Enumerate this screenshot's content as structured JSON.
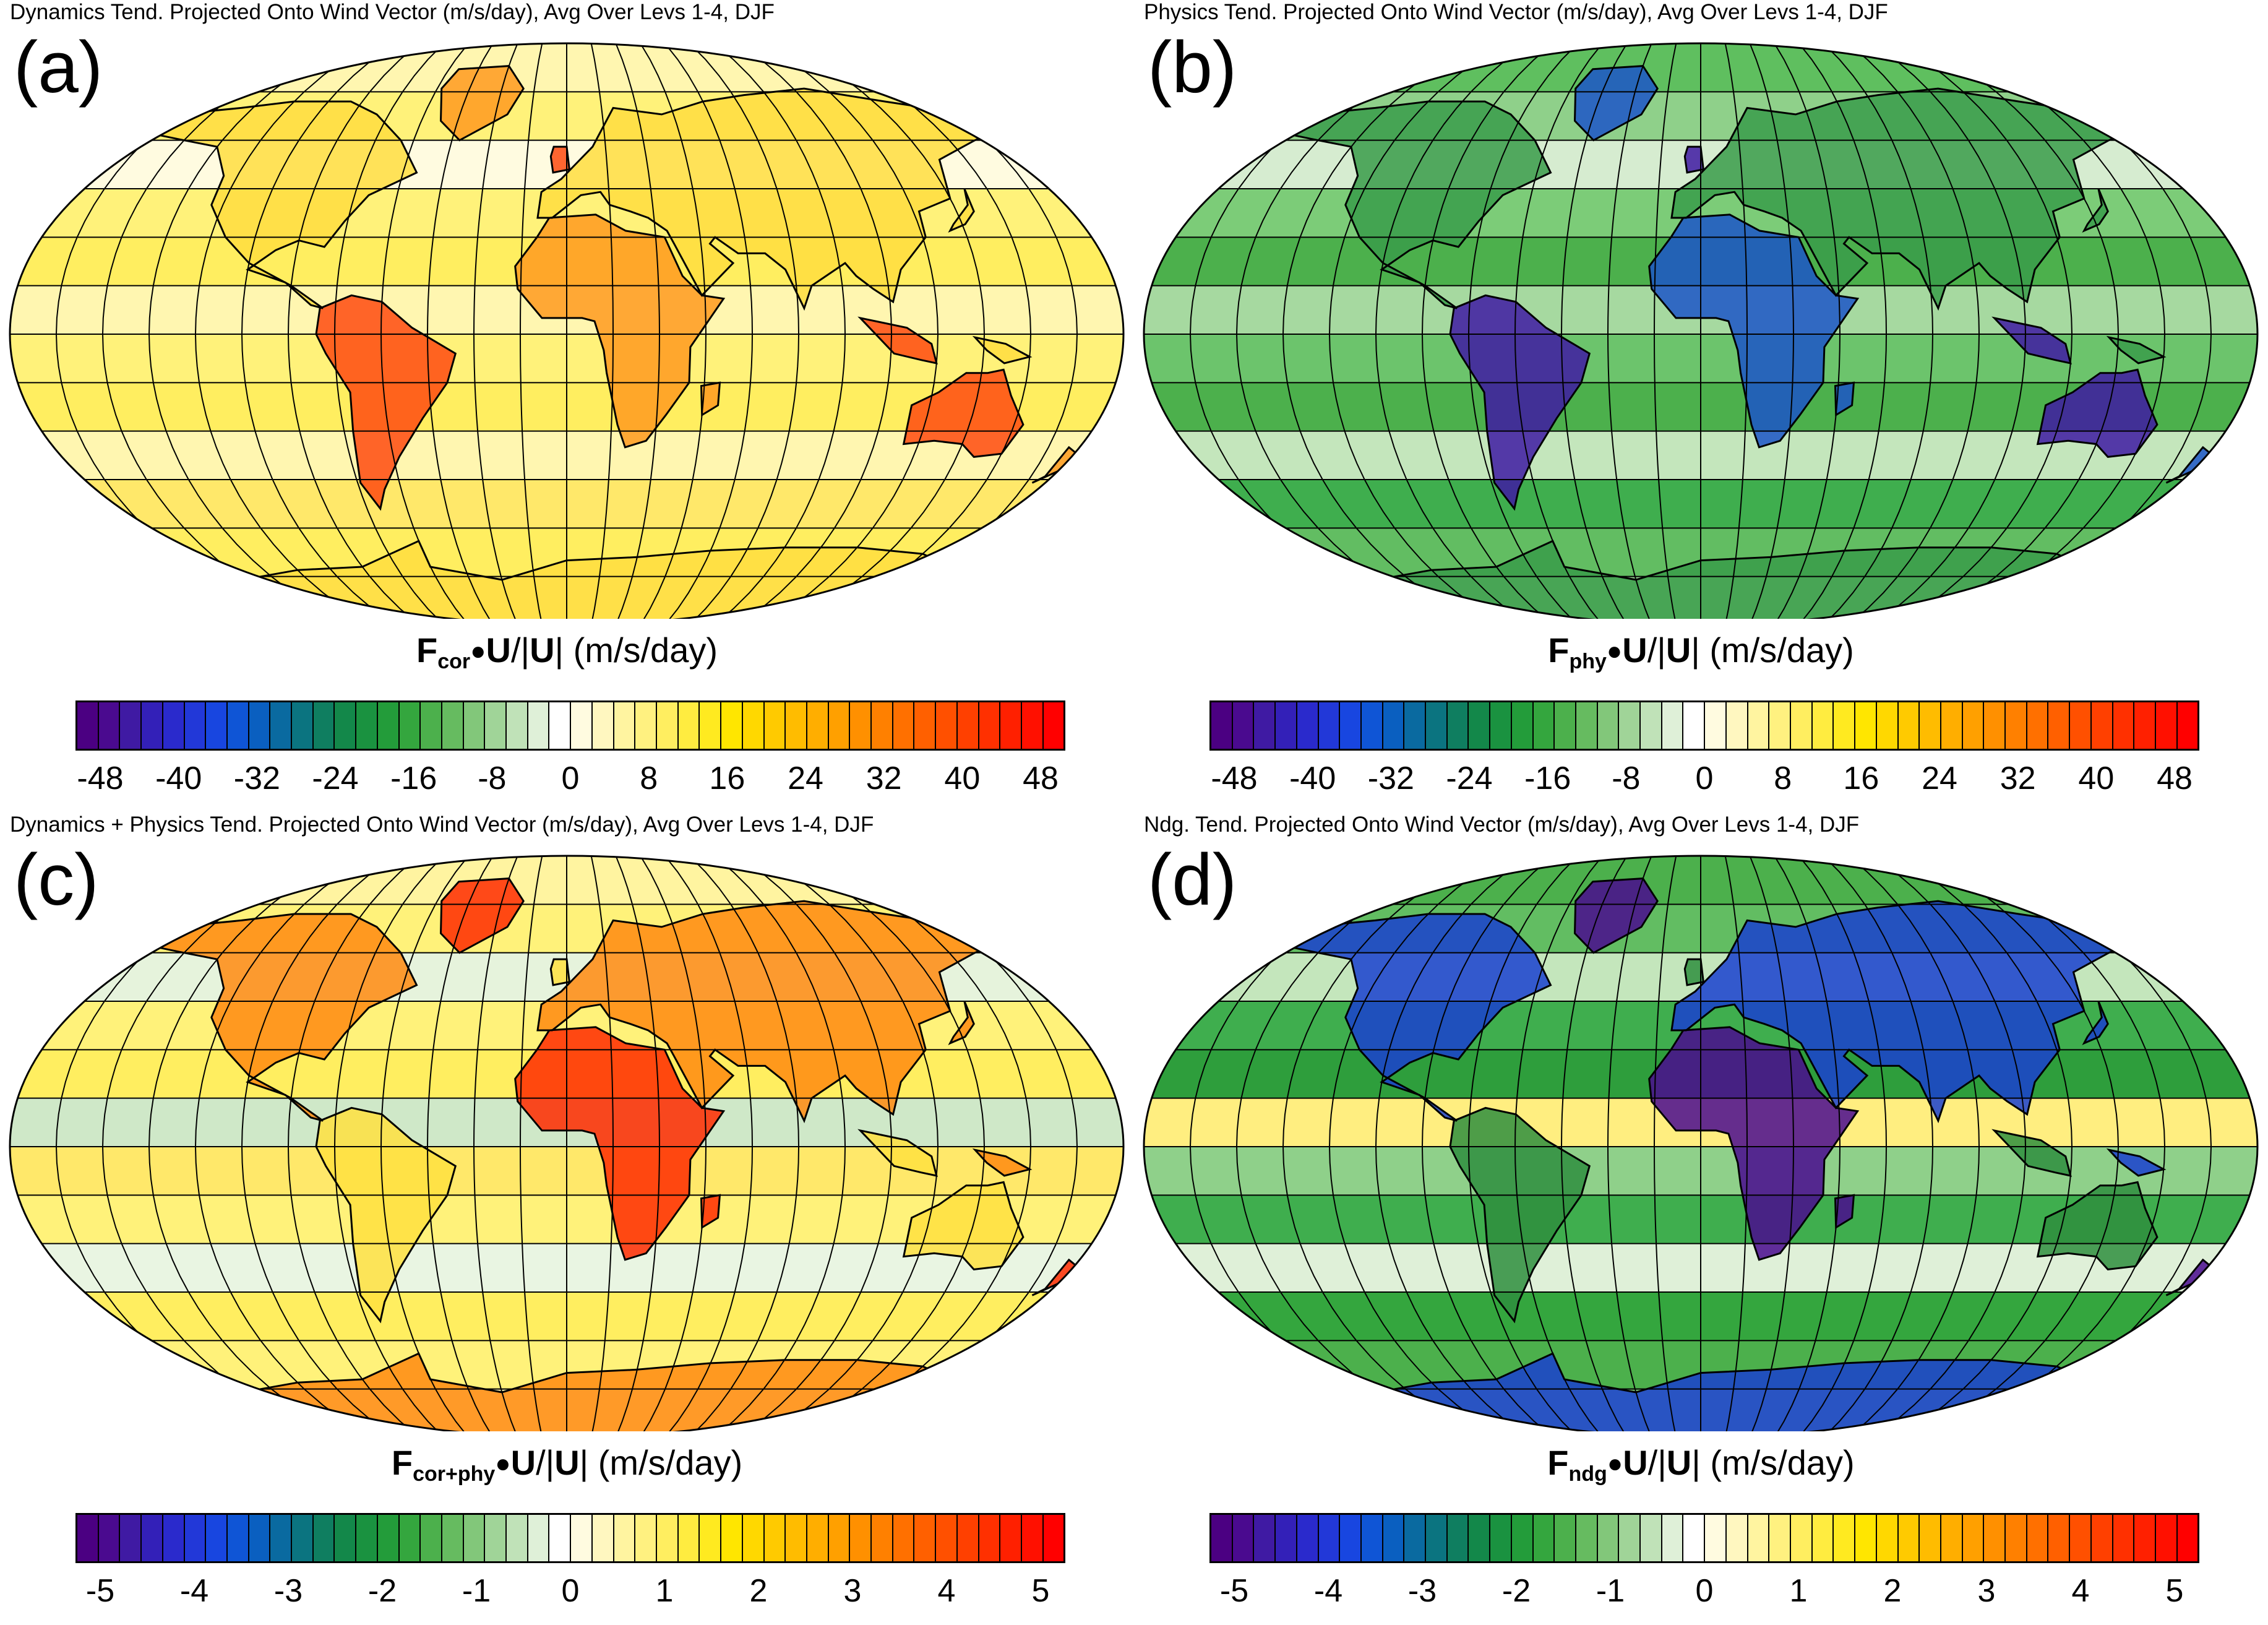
{
  "panels": [
    {
      "letter": "(a)",
      "title": "Dynamics Tend. Projected Onto Wind Vector (m/s/day), Avg Over Levs 1-4, DJF",
      "field": "dyn",
      "cbar": {
        "F": "F",
        "sub": "cor",
        "rest": "U",
        "slash": "/|",
        "rest2": "U",
        "end": "|",
        "units": "(m/s/day)"
      },
      "ticks": [
        "-48",
        "-40",
        "-32",
        "-24",
        "-16",
        "-8",
        "0",
        "8",
        "16",
        "24",
        "32",
        "40",
        "48"
      ]
    },
    {
      "letter": "(b)",
      "title": "Physics Tend. Projected Onto Wind Vector (m/s/day), Avg Over Levs 1-4, DJF",
      "field": "phy",
      "cbar": {
        "F": "F",
        "sub": "phy",
        "rest": "U",
        "slash": "/|",
        "rest2": "U",
        "end": "|",
        "units": "(m/s/day)"
      },
      "ticks": [
        "-48",
        "-40",
        "-32",
        "-24",
        "-16",
        "-8",
        "0",
        "8",
        "16",
        "24",
        "32",
        "40",
        "48"
      ]
    },
    {
      "letter": "(c)",
      "title": "Dynamics + Physics Tend. Projected Onto Wind Vector (m/s/day), Avg Over Levs 1-4, DJF",
      "field": "sum",
      "cbar": {
        "F": "F",
        "sub": "cor+phy",
        "rest": "U",
        "slash": "/|",
        "rest2": "U",
        "end": "|",
        "units": "(m/s/day)"
      },
      "ticks": [
        "-5",
        "-4",
        "-3",
        "-2",
        "-1",
        "0",
        "1",
        "2",
        "3",
        "4",
        "5"
      ]
    },
    {
      "letter": "(d)",
      "title": "Ndg. Tend. Projected Onto Wind Vector (m/s/day), Avg Over Levs 1-4, DJF",
      "field": "ndg",
      "cbar": {
        "F": "F",
        "sub": "ndg",
        "rest": "U",
        "slash": "/|",
        "rest2": "U",
        "end": "|",
        "units": "(m/s/day)"
      },
      "ticks": [
        "-5",
        "-4",
        "-3",
        "-2",
        "-1",
        "0",
        "1",
        "2",
        "3",
        "4",
        "5"
      ]
    }
  ],
  "palette": [
    "#4b0082",
    "#4a0a8f",
    "#3f1aa3",
    "#3320b8",
    "#2a2acc",
    "#2238d8",
    "#1846e0",
    "#0f55d6",
    "#0a5fc0",
    "#0a6aa0",
    "#0b7480",
    "#0f7e60",
    "#13884a",
    "#1a9240",
    "#239c3a",
    "#34a63e",
    "#4cb04c",
    "#66bb60",
    "#82c77a",
    "#a0d498",
    "#c0e2b8",
    "#dff0d8",
    "#ffffff",
    "#fffbe0",
    "#fff7c0",
    "#fff4a0",
    "#fff180",
    "#ffee60",
    "#ffec40",
    "#ffea20",
    "#ffe600",
    "#ffd800",
    "#ffca00",
    "#ffbc00",
    "#ffae00",
    "#ffa000",
    "#ff9000",
    "#ff8000",
    "#ff7000",
    "#ff6000",
    "#ff5000",
    "#ff4000",
    "#ff3000",
    "#ff2000",
    "#ff1000",
    "#ff0000"
  ],
  "colors": {
    "dyn_base": "#fff27a",
    "phy_base": "#6cc46c",
    "sum_base": "#fff27a",
    "ndg_base": "#3fae4e",
    "coast": "#000000",
    "grid": "#000000"
  }
}
